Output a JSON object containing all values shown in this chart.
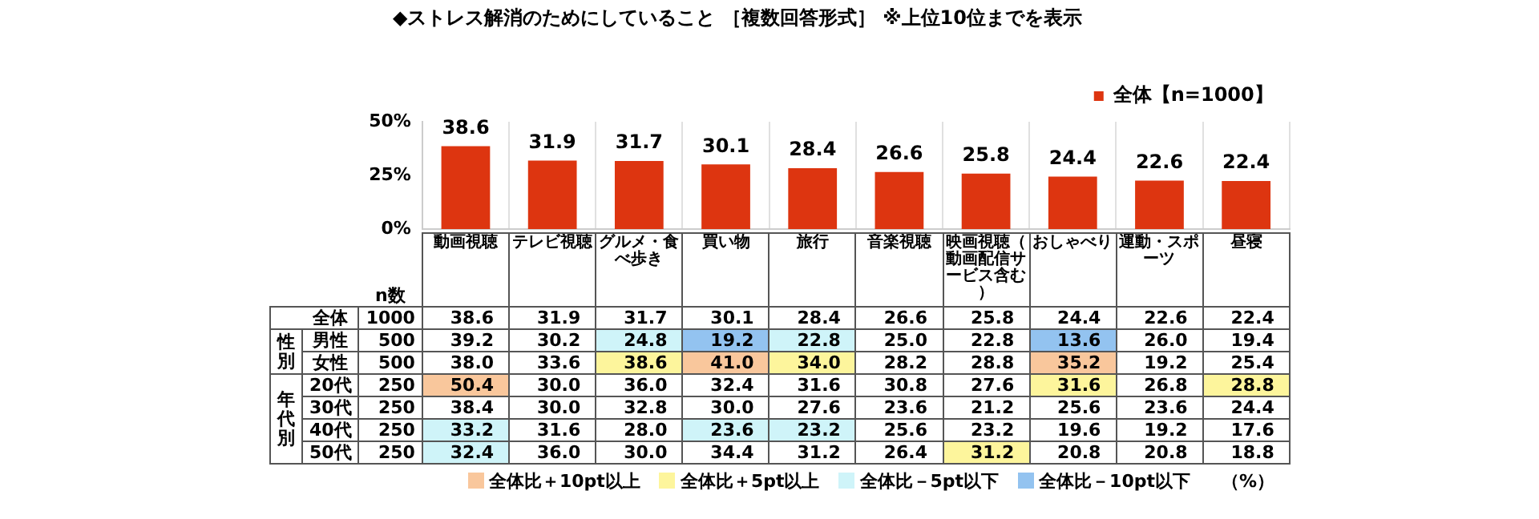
{
  "chart_data": [
    {
      "type": "bar",
      "title": "◆ストレス解消のためにしていること ［複数回答形式］ ※上位10位までを表示",
      "categories": [
        "動画視聴",
        "テレビ視聴",
        "グルメ・食べ歩き",
        "買い物",
        "旅行",
        "音楽視聴",
        "映画視聴（動画配信サービス含む）",
        "おしゃべり",
        "運動・スポーツ",
        "昼寝"
      ],
      "series": [
        {
          "name": "全体【n=1000】",
          "color": "#dd3510",
          "values": [
            38.6,
            31.9,
            31.7,
            30.1,
            28.4,
            26.6,
            25.8,
            24.4,
            22.6,
            22.4
          ],
          "value_labels": [
            "38.6",
            "31.9",
            "31.7",
            "30.1",
            "28.4",
            "26.6",
            "25.8",
            "24.4",
            "22.6",
            "22.4"
          ]
        }
      ],
      "ylim": [
        0,
        50
      ],
      "yticks": [
        {
          "value": 0,
          "label": "0%"
        },
        {
          "value": 25,
          "label": "25%"
        },
        {
          "value": 50,
          "label": "50%"
        }
      ],
      "grid": "x",
      "legend": "top right"
    },
    {
      "type": "heatmap",
      "categories": [
        "動画視聴",
        "テレビ視聴",
        "グルメ・食べ歩き",
        "買い物",
        "旅行",
        "音楽視聴",
        "映画視聴（動画配信サービス含む）",
        "おしゃべり",
        "運動・スポーツ",
        "昼寝"
      ],
      "y_categories": [
        "全体",
        "男性",
        "女性",
        "20代",
        "30代",
        "40代",
        "50代"
      ],
      "y2_categories": [
        "1000",
        "500",
        "500",
        "250",
        "250",
        "250",
        "250"
      ],
      "cells": [
        [
          38.6,
          31.9,
          31.7,
          30.1,
          28.4,
          26.6,
          25.8,
          24.4,
          22.6,
          22.4
        ],
        [
          39.2,
          30.2,
          24.8,
          19.2,
          22.8,
          25.0,
          22.8,
          13.6,
          26.0,
          19.4
        ],
        [
          38.0,
          33.6,
          38.6,
          41.0,
          34.0,
          28.2,
          28.8,
          35.2,
          19.2,
          25.4
        ],
        [
          50.4,
          30.0,
          36.0,
          32.4,
          31.6,
          30.8,
          27.6,
          31.6,
          26.8,
          28.8
        ],
        [
          38.4,
          30.0,
          32.8,
          30.0,
          27.6,
          23.6,
          21.2,
          25.6,
          23.6,
          24.4
        ],
        [
          33.2,
          31.6,
          28.0,
          23.6,
          23.2,
          25.6,
          23.2,
          19.6,
          19.2,
          17.6
        ],
        [
          32.4,
          36.0,
          30.0,
          34.4,
          31.2,
          26.4,
          31.2,
          20.8,
          20.8,
          18.8
        ]
      ],
      "cell_labels": [
        [
          "38.6",
          "31.9",
          "31.7",
          "30.1",
          "28.4",
          "26.6",
          "25.8",
          "24.4",
          "22.6",
          "22.4"
        ],
        [
          "39.2",
          "30.2",
          "24.8",
          "19.2",
          "22.8",
          "25.0",
          "22.8",
          "13.6",
          "26.0",
          "19.4"
        ],
        [
          "38.0",
          "33.6",
          "38.6",
          "41.0",
          "34.0",
          "28.2",
          "28.8",
          "35.2",
          "19.2",
          "25.4"
        ],
        [
          "50.4",
          "30.0",
          "36.0",
          "32.4",
          "31.6",
          "30.8",
          "27.6",
          "31.6",
          "26.8",
          "28.8"
        ],
        [
          "38.4",
          "30.0",
          "32.8",
          "30.0",
          "27.6",
          "23.6",
          "21.2",
          "25.6",
          "23.6",
          "24.4"
        ],
        [
          "33.2",
          "31.6",
          "28.0",
          "23.6",
          "23.2",
          "25.6",
          "23.2",
          "19.6",
          "19.2",
          "17.6"
        ],
        [
          "32.4",
          "36.0",
          "30.0",
          "34.4",
          "31.2",
          "26.4",
          "31.2",
          "20.8",
          "20.8",
          "18.8"
        ]
      ],
      "colors": [
        [
          null,
          null,
          null,
          null,
          null,
          null,
          null,
          null,
          null,
          null
        ],
        [
          null,
          null,
          "#cff4f9",
          "#93c3f0",
          "#cff4f9",
          null,
          null,
          "#93c3f0",
          null,
          null
        ],
        [
          null,
          null,
          "#fdf59c",
          "#f9c79c",
          "#fdf59c",
          null,
          null,
          "#f9c79c",
          null,
          null
        ],
        [
          "#f9c79c",
          null,
          null,
          null,
          null,
          null,
          null,
          "#fdf59c",
          null,
          "#fdf59c"
        ],
        [
          null,
          null,
          null,
          null,
          null,
          null,
          null,
          null,
          null,
          null
        ],
        [
          "#cff4f9",
          null,
          null,
          "#cff4f9",
          "#cff4f9",
          null,
          null,
          null,
          null,
          null
        ],
        [
          "#cff4f9",
          null,
          null,
          null,
          null,
          null,
          "#fdf59c",
          null,
          null,
          null
        ]
      ],
      "series": [
        {
          "name": "全体比＋10pt以上",
          "color": "#f9c79c",
          "values": [
            null,
            null,
            null,
            null,
            null,
            null,
            null,
            null,
            null,
            null
          ]
        },
        {
          "name": "全体比＋5pt以上",
          "color": "#fdf59c",
          "values": [
            null,
            null,
            null,
            null,
            null,
            null,
            null,
            null,
            null,
            null
          ]
        },
        {
          "name": "全体比－5pt以下",
          "color": "#cff4f9",
          "values": [
            null,
            null,
            null,
            null,
            null,
            null,
            null,
            null,
            null,
            null
          ]
        },
        {
          "name": "全体比－10pt以下",
          "color": "#93c3f0",
          "values": [
            null,
            null,
            null,
            null,
            null,
            null,
            null,
            null,
            null,
            null
          ]
        }
      ],
      "legend": "bottom",
      "tick_labels": "y",
      "annotations": [
        "n数",
        "性別",
        "年代別",
        "（%）"
      ]
    }
  ]
}
